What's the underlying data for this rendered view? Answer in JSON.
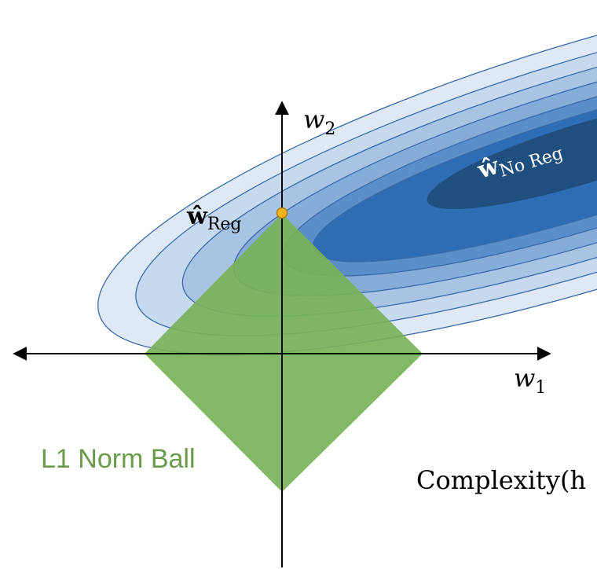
{
  "diagram": {
    "axes": {
      "w1_label": {
        "base": "w",
        "sub": "1"
      },
      "w2_label": {
        "base": "w",
        "sub": "2"
      }
    },
    "points": {
      "reg": {
        "base": "ŵ",
        "sub": "Reg"
      },
      "no_reg": {
        "base": "ŵ",
        "sub": "No Reg"
      }
    },
    "norm_ball_label": "L1 Norm Ball",
    "footer_text": "Complexity(h",
    "colors": {
      "ring1": "#dfe9f5",
      "ring2": "#c7d9ee",
      "ring3": "#a8c4e5",
      "ring4": "#86acd9",
      "ring5": "#5a8ec9",
      "core": "#2e6db4",
      "center": "#1e4f7e",
      "contour_stroke": "#3a6aa8",
      "norm_ball_fill": "#78b259",
      "norm_ball_text": "#6a9a4a",
      "point_fill": "#f5b21a",
      "point_stroke": "#b07a00",
      "axis": "#000000"
    }
  }
}
